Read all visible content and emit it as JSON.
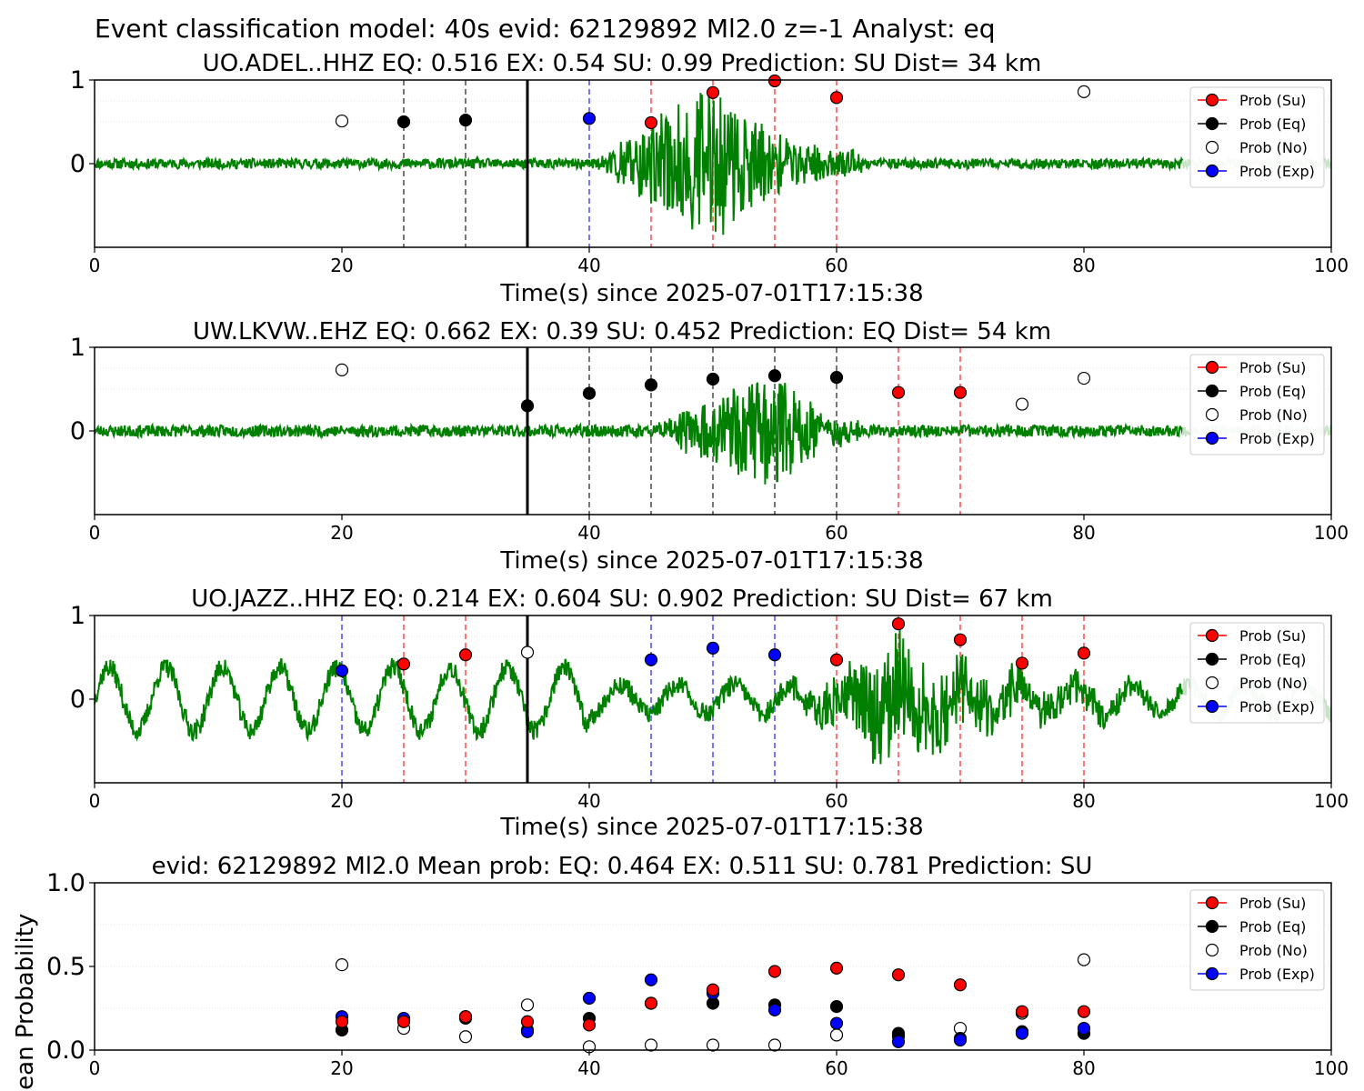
{
  "figure_title": "Event classification model: 40s evid: 62129892 Ml2.0 z=-1 Analyst: eq",
  "colors": {
    "trace": "#008000",
    "trace_faded": "#c8e3c8",
    "su": "#ff0000",
    "eq": "#000000",
    "no": "#ffffff",
    "exp": "#0000ff",
    "line_su": "#ff5555",
    "line_eq": "#555555",
    "line_exp": "#5555ff"
  },
  "legend_labels": [
    "Prob (Su)",
    "Prob (Eq)",
    "Prob (No)",
    "Prob (Exp)"
  ],
  "chart_data": [
    {
      "type": "scatter",
      "title": "UO.ADEL..HHZ   EQ: 0.516  EX: 0.54  SU: 0.99   Prediction: SU    Dist= 34 km",
      "xlabel": "Time(s) since 2025-07-01T17:15:38",
      "ylabel": "",
      "xlim": [
        0,
        100
      ],
      "ylim": [
        -1,
        1
      ],
      "xticks": [
        "0",
        "20",
        "40",
        "60",
        "80",
        "100"
      ],
      "yticks": [
        "0",
        "1"
      ],
      "legend_position": "top-right",
      "trace": {
        "seed": 11,
        "noise": 0.06,
        "burst_start": 40,
        "burst_end": 62,
        "burst_peak": 50,
        "burst_amp": 0.95,
        "fade_start": 88,
        "type": "noise"
      },
      "arrival_line": 35,
      "points": [
        {
          "x": 20,
          "y": 0.51,
          "cls": "no"
        },
        {
          "x": 25,
          "y": 0.5,
          "cls": "eq"
        },
        {
          "x": 30,
          "y": 0.52,
          "cls": "eq"
        },
        {
          "x": 40,
          "y": 0.54,
          "cls": "exp"
        },
        {
          "x": 45,
          "y": 0.49,
          "cls": "su"
        },
        {
          "x": 50,
          "y": 0.85,
          "cls": "su"
        },
        {
          "x": 55,
          "y": 0.99,
          "cls": "su"
        },
        {
          "x": 60,
          "y": 0.79,
          "cls": "su"
        },
        {
          "x": 80,
          "y": 0.86,
          "cls": "no"
        }
      ]
    },
    {
      "type": "scatter",
      "title": "UW.LKVW..EHZ   EQ: 0.662  EX: 0.39  SU: 0.452   Prediction: EQ    Dist= 54 km",
      "xlabel": "Time(s) since 2025-07-01T17:15:38",
      "ylabel": "",
      "xlim": [
        0,
        100
      ],
      "ylim": [
        -1,
        1
      ],
      "xticks": [
        "0",
        "20",
        "40",
        "60",
        "80",
        "100"
      ],
      "yticks": [
        "0",
        "1"
      ],
      "legend_position": "top-right",
      "trace": {
        "seed": 23,
        "noise": 0.07,
        "burst_start": 45,
        "burst_end": 62,
        "burst_peak": 55,
        "burst_amp": 0.75,
        "fade_start": 88,
        "type": "noise"
      },
      "arrival_line": 35,
      "points": [
        {
          "x": 20,
          "y": 0.73,
          "cls": "no"
        },
        {
          "x": 35,
          "y": 0.3,
          "cls": "eq"
        },
        {
          "x": 40,
          "y": 0.45,
          "cls": "eq"
        },
        {
          "x": 45,
          "y": 0.55,
          "cls": "eq"
        },
        {
          "x": 50,
          "y": 0.62,
          "cls": "eq"
        },
        {
          "x": 55,
          "y": 0.66,
          "cls": "eq"
        },
        {
          "x": 60,
          "y": 0.64,
          "cls": "eq"
        },
        {
          "x": 65,
          "y": 0.46,
          "cls": "su"
        },
        {
          "x": 70,
          "y": 0.46,
          "cls": "su"
        },
        {
          "x": 75,
          "y": 0.32,
          "cls": "no"
        },
        {
          "x": 80,
          "y": 0.63,
          "cls": "no"
        }
      ]
    },
    {
      "type": "scatter",
      "title": "UO.JAZZ..HHZ   EQ: 0.214  EX: 0.604  SU: 0.902   Prediction: SU    Dist= 67 km",
      "xlabel": "Time(s) since 2025-07-01T17:15:38",
      "ylabel": "",
      "xlim": [
        0,
        100
      ],
      "ylim": [
        -1,
        1
      ],
      "xticks": [
        "0",
        "20",
        "40",
        "60",
        "80",
        "100"
      ],
      "yticks": [
        "0",
        "1"
      ],
      "legend_position": "top-right",
      "trace": {
        "seed": 37,
        "noise": 0.12,
        "burst_start": 55,
        "burst_end": 85,
        "burst_peak": 65,
        "burst_amp": 0.7,
        "fade_start": 88,
        "type": "wave"
      },
      "arrival_line": 35,
      "points": [
        {
          "x": 20,
          "y": 0.34,
          "cls": "exp"
        },
        {
          "x": 25,
          "y": 0.42,
          "cls": "su"
        },
        {
          "x": 30,
          "y": 0.53,
          "cls": "su"
        },
        {
          "x": 35,
          "y": 0.56,
          "cls": "no"
        },
        {
          "x": 45,
          "y": 0.47,
          "cls": "exp"
        },
        {
          "x": 50,
          "y": 0.61,
          "cls": "exp"
        },
        {
          "x": 55,
          "y": 0.53,
          "cls": "exp"
        },
        {
          "x": 60,
          "y": 0.47,
          "cls": "su"
        },
        {
          "x": 65,
          "y": 0.9,
          "cls": "su"
        },
        {
          "x": 70,
          "y": 0.71,
          "cls": "su"
        },
        {
          "x": 75,
          "y": 0.43,
          "cls": "su"
        },
        {
          "x": 80,
          "y": 0.55,
          "cls": "su"
        }
      ]
    },
    {
      "type": "scatter",
      "title": "evid: 62129892  Ml2.0   Mean prob:   EQ: 0.464  EX: 0.511  SU: 0.781   Prediction: SU",
      "xlabel": "",
      "ylabel": "Mean Probability",
      "xlim": [
        0,
        100
      ],
      "ylim": [
        0,
        1
      ],
      "xticks": [
        "0",
        "20",
        "40",
        "60",
        "80",
        "100"
      ],
      "yticks": [
        "0.0",
        "0.5",
        "1.0"
      ],
      "legend_position": "top-right",
      "x": [
        20,
        25,
        30,
        35,
        40,
        45,
        50,
        55,
        60,
        65,
        70,
        75,
        80
      ],
      "series": [
        {
          "cls": "no",
          "values": [
            0.51,
            0.13,
            0.08,
            0.27,
            0.02,
            0.03,
            0.03,
            0.03,
            0.09,
            0.08,
            0.13,
            0.22,
            0.54
          ]
        },
        {
          "cls": "eq",
          "values": [
            0.12,
            0.18,
            0.19,
            0.12,
            0.19,
            0.28,
            0.28,
            0.27,
            0.26,
            0.1,
            0.07,
            0.11,
            0.1
          ]
        },
        {
          "cls": "exp",
          "values": [
            0.2,
            0.19,
            0.2,
            0.11,
            0.31,
            0.42,
            0.34,
            0.24,
            0.16,
            0.05,
            0.06,
            0.1,
            0.13
          ]
        },
        {
          "cls": "su",
          "values": [
            0.17,
            0.17,
            0.2,
            0.17,
            0.15,
            0.28,
            0.36,
            0.47,
            0.49,
            0.45,
            0.39,
            0.23,
            0.23
          ]
        }
      ]
    }
  ]
}
